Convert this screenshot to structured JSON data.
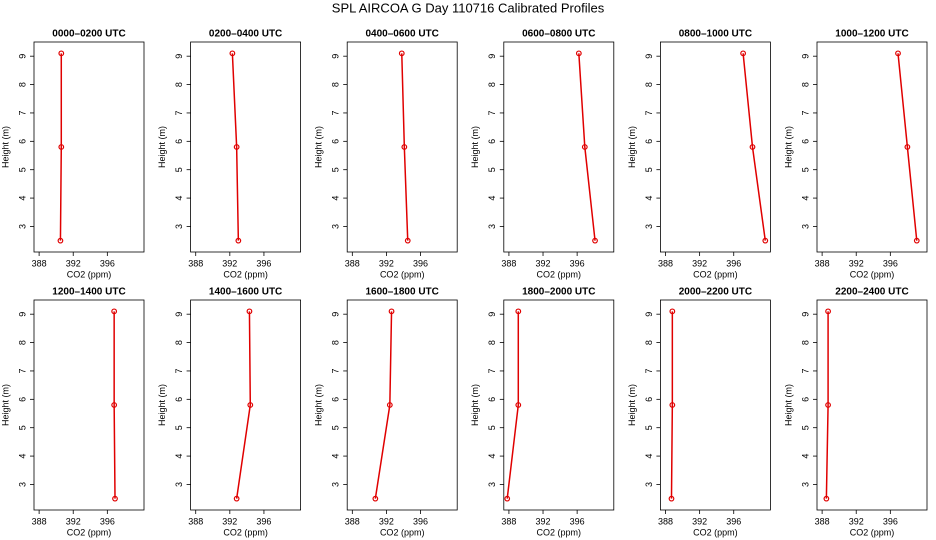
{
  "title": "SPL AIRCOA G  Day 110716  Calibrated Profiles",
  "chart_data": [
    {
      "type": "line",
      "title": "0000–0200 UTC",
      "x_label": "CO2 (ppm)",
      "y_label": "Height (m)",
      "x": [
        390.5,
        390.6,
        390.6
      ],
      "values": [
        2.5,
        5.8,
        9.1
      ],
      "color": "#e00000",
      "xlim": [
        387.4,
        400.3
      ],
      "xticks": [
        388,
        392,
        396
      ],
      "ylim": [
        2.1,
        9.5
      ],
      "yticks": [
        3,
        4,
        5,
        6,
        7,
        8,
        9
      ]
    },
    {
      "type": "line",
      "title": "0200–0400 UTC",
      "x_label": "CO2 (ppm)",
      "y_label": "Height (m)",
      "x": [
        393.0,
        392.8,
        392.3
      ],
      "values": [
        2.5,
        5.8,
        9.1
      ],
      "color": "#e00000",
      "xlim": [
        387.4,
        400.3
      ],
      "xticks": [
        388,
        392,
        396
      ],
      "ylim": [
        2.1,
        9.5
      ],
      "yticks": [
        3,
        4,
        5,
        6,
        7,
        8,
        9
      ]
    },
    {
      "type": "line",
      "title": "0400–0600 UTC",
      "x_label": "CO2 (ppm)",
      "y_label": "Height (m)",
      "x": [
        394.5,
        394.1,
        393.8
      ],
      "values": [
        2.5,
        5.8,
        9.1
      ],
      "color": "#e00000",
      "xlim": [
        387.4,
        400.3
      ],
      "xticks": [
        388,
        392,
        396
      ],
      "ylim": [
        2.1,
        9.5
      ],
      "yticks": [
        3,
        4,
        5,
        6,
        7,
        8,
        9
      ]
    },
    {
      "type": "line",
      "title": "0600–0800 UTC",
      "x_label": "CO2 (ppm)",
      "y_label": "Height (m)",
      "x": [
        398.1,
        396.9,
        396.2
      ],
      "values": [
        2.5,
        5.8,
        9.1
      ],
      "color": "#e00000",
      "xlim": [
        387.4,
        400.3
      ],
      "xticks": [
        388,
        392,
        396
      ],
      "ylim": [
        2.1,
        9.5
      ],
      "yticks": [
        3,
        4,
        5,
        6,
        7,
        8,
        9
      ]
    },
    {
      "type": "line",
      "title": "0800–1000 UTC",
      "x_label": "CO2 (ppm)",
      "y_label": "Height (m)",
      "x": [
        399.7,
        398.2,
        397.1
      ],
      "values": [
        2.5,
        5.8,
        9.1
      ],
      "color": "#e00000",
      "xlim": [
        387.4,
        400.3
      ],
      "xticks": [
        388,
        392,
        396
      ],
      "ylim": [
        2.1,
        9.5
      ],
      "yticks": [
        3,
        4,
        5,
        6,
        7,
        8,
        9
      ]
    },
    {
      "type": "line",
      "title": "1000–1200 UTC",
      "x_label": "CO2 (ppm)",
      "y_label": "Height (m)",
      "x": [
        399.1,
        398.0,
        396.9
      ],
      "values": [
        2.5,
        5.8,
        9.1
      ],
      "color": "#e00000",
      "xlim": [
        387.4,
        400.3
      ],
      "xticks": [
        388,
        392,
        396
      ],
      "ylim": [
        2.1,
        9.5
      ],
      "yticks": [
        3,
        4,
        5,
        6,
        7,
        8,
        9
      ]
    },
    {
      "type": "line",
      "title": "1200–1400 UTC",
      "x_label": "CO2 (ppm)",
      "y_label": "Height (m)",
      "x": [
        396.9,
        396.8,
        396.8
      ],
      "values": [
        2.5,
        5.8,
        9.1
      ],
      "color": "#e00000",
      "xlim": [
        387.4,
        400.3
      ],
      "xticks": [
        388,
        392,
        396
      ],
      "ylim": [
        2.1,
        9.5
      ],
      "yticks": [
        3,
        4,
        5,
        6,
        7,
        8,
        9
      ]
    },
    {
      "type": "line",
      "title": "1400–1600 UTC",
      "x_label": "CO2 (ppm)",
      "y_label": "Height (m)",
      "x": [
        392.8,
        394.4,
        394.3
      ],
      "values": [
        2.5,
        5.8,
        9.1
      ],
      "color": "#e00000",
      "xlim": [
        387.4,
        400.3
      ],
      "xticks": [
        388,
        392,
        396
      ],
      "ylim": [
        2.1,
        9.5
      ],
      "yticks": [
        3,
        4,
        5,
        6,
        7,
        8,
        9
      ]
    },
    {
      "type": "line",
      "title": "1600–1800 UTC",
      "x_label": "CO2 (ppm)",
      "y_label": "Height (m)",
      "x": [
        390.7,
        392.4,
        392.6
      ],
      "values": [
        2.5,
        5.8,
        9.1
      ],
      "color": "#e00000",
      "xlim": [
        387.4,
        400.3
      ],
      "xticks": [
        388,
        392,
        396
      ],
      "ylim": [
        2.1,
        9.5
      ],
      "yticks": [
        3,
        4,
        5,
        6,
        7,
        8,
        9
      ]
    },
    {
      "type": "line",
      "title": "1800–2000 UTC",
      "x_label": "CO2 (ppm)",
      "y_label": "Height (m)",
      "x": [
        387.8,
        389.1,
        389.1
      ],
      "values": [
        2.5,
        5.8,
        9.1
      ],
      "color": "#e00000",
      "xlim": [
        387.4,
        400.3
      ],
      "xticks": [
        388,
        392,
        396
      ],
      "ylim": [
        2.1,
        9.5
      ],
      "yticks": [
        3,
        4,
        5,
        6,
        7,
        8,
        9
      ]
    },
    {
      "type": "line",
      "title": "2000–2200 UTC",
      "x_label": "CO2 (ppm)",
      "y_label": "Height (m)",
      "x": [
        388.7,
        388.8,
        388.8
      ],
      "values": [
        2.5,
        5.8,
        9.1
      ],
      "color": "#e00000",
      "xlim": [
        387.4,
        400.3
      ],
      "xticks": [
        388,
        392,
        396
      ],
      "ylim": [
        2.1,
        9.5
      ],
      "yticks": [
        3,
        4,
        5,
        6,
        7,
        8,
        9
      ]
    },
    {
      "type": "line",
      "title": "2200–2400 UTC",
      "x_label": "CO2 (ppm)",
      "y_label": "Height (m)",
      "x": [
        388.5,
        388.7,
        388.7
      ],
      "values": [
        2.5,
        5.8,
        9.1
      ],
      "color": "#e00000",
      "xlim": [
        387.4,
        400.3
      ],
      "xticks": [
        388,
        392,
        396
      ],
      "ylim": [
        2.1,
        9.5
      ],
      "yticks": [
        3,
        4,
        5,
        6,
        7,
        8,
        9
      ]
    }
  ]
}
